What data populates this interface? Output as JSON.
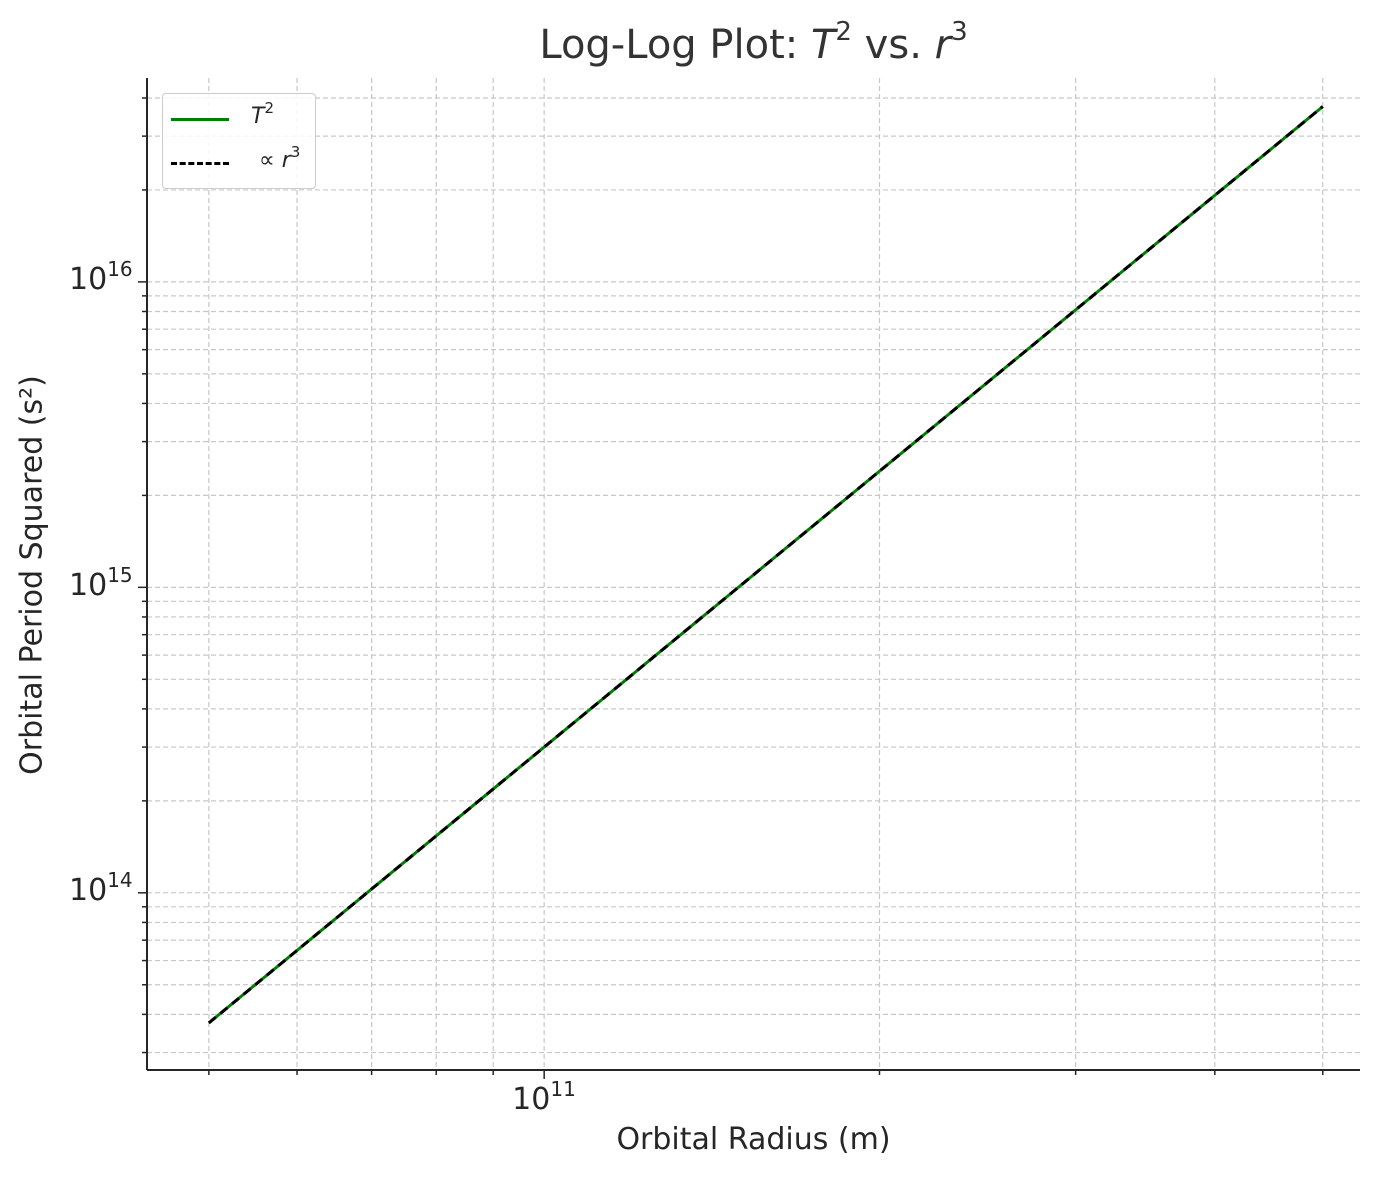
{
  "chart_data": {
    "type": "line",
    "title_prefix": "Log-Log Plot: ",
    "title_T": "T",
    "title_T_exp": "2",
    "title_mid": " vs. ",
    "title_r": "r",
    "title_r_exp": "3",
    "xlabel": "Orbital Radius (m)",
    "ylabel": "Orbital Period Squared (s²)",
    "xscale": "log",
    "yscale": "log",
    "xlim": [
      44000000000.0,
      540000000000.0
    ],
    "ylim": [
      26300000000000.0,
      4.65e+16
    ],
    "grid": true,
    "legend_position": "top-left",
    "x_major_ticks": [
      {
        "base": "10",
        "exp": "11",
        "value": 100000000000.0
      }
    ],
    "y_major_ticks": [
      {
        "base": "10",
        "exp": "14",
        "value": 100000000000000.0
      },
      {
        "base": "10",
        "exp": "15",
        "value": 1000000000000000.0
      },
      {
        "base": "10",
        "exp": "16",
        "value": 1e+16
      }
    ],
    "series": [
      {
        "name_main": "T",
        "name_exp": "2",
        "label_style": "T2",
        "color": "#008000",
        "style": "solid",
        "x": [
          50000000000.0,
          500000000000.0
        ],
        "y": [
          37500000000000.0,
          3.75e+16
        ]
      },
      {
        "name_main": "∝ r",
        "name_exp": "3",
        "label_style": "r3",
        "color": "#000000",
        "style": "dashed",
        "x": [
          50000000000.0,
          500000000000.0
        ],
        "y": [
          37500000000000.0,
          3.75e+16
        ]
      }
    ]
  }
}
